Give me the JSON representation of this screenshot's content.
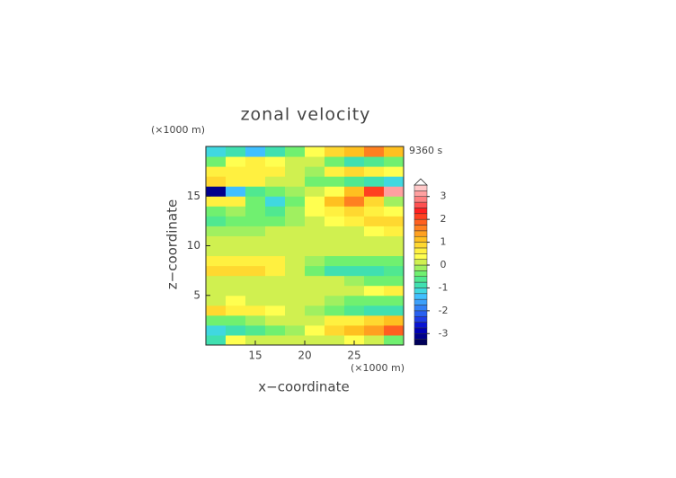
{
  "chart_data": {
    "type": "contour",
    "title": "zonal velocity",
    "x_label": "x−coordinate",
    "y_label": "z−coordinate",
    "x_unit": "(×1000 m)",
    "y_unit": "(×1000 m)",
    "time_label": "9360 s",
    "x": [
      11,
      13,
      15,
      17,
      19,
      21,
      23,
      25,
      27,
      29
    ],
    "z": [
      0.5,
      1.5,
      2.5,
      3.5,
      4.5,
      5.5,
      6.5,
      7.5,
      8.5,
      9.5,
      10.5,
      11.5,
      12.5,
      13.5,
      14.5,
      15.5,
      16.5,
      17.5,
      18.5,
      19.5
    ],
    "field": [
      [
        -1,
        0.3,
        0.2,
        0.1,
        0,
        0.1,
        0.2,
        0.3,
        0.2,
        -0.5
      ],
      [
        -1.2,
        -0.8,
        -0.6,
        -0.3,
        -0.1,
        0.3,
        0.8,
        1,
        1.3,
        1.8
      ],
      [
        -0.5,
        -0.3,
        -0.2,
        0,
        0,
        0.2,
        0.5,
        0.6,
        0.8,
        1
      ],
      [
        0.8,
        0.6,
        0.5,
        0.3,
        0.1,
        -0.2,
        -0.5,
        -0.6,
        -0.8,
        -1
      ],
      [
        0.2,
        0.3,
        0.2,
        0.1,
        0,
        0,
        -0.2,
        -0.3,
        -0.3,
        -0.5
      ],
      [
        0,
        0,
        0.1,
        0,
        0,
        0,
        0.1,
        0.2,
        0.3,
        0.6
      ],
      [
        0.1,
        0.1,
        0,
        0,
        0,
        0,
        0,
        -0.2,
        -0.4,
        -0.3
      ],
      [
        0.8,
        0.9,
        0.9,
        0.7,
        0.2,
        -0.3,
        -0.8,
        -1,
        -1,
        -0.6
      ],
      [
        0.5,
        0.7,
        0.6,
        0.5,
        0.2,
        -0.2,
        -0.4,
        -0.5,
        -0.5,
        -0.3
      ],
      [
        0.2,
        0.2,
        0.2,
        0.1,
        0,
        0,
        0,
        0.1,
        0.1,
        0
      ],
      [
        0.1,
        0.1,
        0.1,
        0,
        0,
        0,
        0.1,
        0.1,
        0.1,
        0.1
      ],
      [
        -0.2,
        -0.1,
        -0.1,
        0,
        0,
        0,
        0,
        0.2,
        0.4,
        0.5
      ],
      [
        -0.6,
        -0.5,
        -0.4,
        -0.3,
        -0.1,
        0,
        0.3,
        0.6,
        0.8,
        0.9
      ],
      [
        -0.3,
        -0.2,
        -0.5,
        -0.6,
        -0.2,
        0.3,
        0.7,
        0.9,
        0.6,
        0.3
      ],
      [
        0.6,
        0.5,
        -0.3,
        -1.2,
        -0.5,
        0.4,
        1.2,
        1.5,
        0.8,
        -0.2
      ],
      [
        -3.2,
        -1.5,
        -0.6,
        -0.3,
        -0.1,
        0,
        0.4,
        1,
        2,
        3.2
      ],
      [
        0.8,
        0.7,
        0.5,
        0.2,
        0,
        -0.3,
        -0.5,
        -0.7,
        -0.9,
        -1.2
      ],
      [
        0.5,
        0.6,
        0.7,
        0.5,
        0.2,
        -0.1,
        0.6,
        0.8,
        0.5,
        0.3
      ],
      [
        -0.3,
        0.3,
        0.5,
        0.4,
        0.2,
        0.1,
        -0.4,
        -0.9,
        -0.6,
        -0.4
      ],
      [
        -1.2,
        -0.8,
        -1.5,
        -0.8,
        -0.3,
        0.3,
        0.8,
        1.2,
        1.5,
        1.2
      ]
    ],
    "xlim": [
      10,
      30
    ],
    "ylim": [
      0,
      20
    ],
    "xticks": [
      15,
      20,
      25
    ],
    "yticks": [
      5,
      10,
      15
    ],
    "colorbar": {
      "levels": [
        -3.5,
        -3.25,
        -3,
        -2.75,
        -2.5,
        -2.25,
        -2,
        -1.75,
        -1.5,
        -1.25,
        -1,
        -0.75,
        -0.5,
        -0.25,
        0,
        0.25,
        0.5,
        0.75,
        1,
        1.25,
        1.5,
        1.75,
        2,
        2.25,
        2.5,
        2.75,
        3,
        3.25,
        3.5
      ],
      "colors": [
        "#00005a",
        "#00008c",
        "#0000b4",
        "#0a14d2",
        "#1e3ce6",
        "#2860f0",
        "#3280f5",
        "#3ca0fa",
        "#40c0ff",
        "#40d8e0",
        "#40e0b0",
        "#50e890",
        "#70f070",
        "#a0f060",
        "#d0f050",
        "#ffff50",
        "#fff040",
        "#ffd830",
        "#ffc020",
        "#ffa020",
        "#ff8020",
        "#ff6020",
        "#ff4020",
        "#ff2020",
        "#ff5050",
        "#ff8080",
        "#ffa0a0",
        "#ffc8c8"
      ],
      "over_color": "#ffffff",
      "ticks": [
        -3,
        -2,
        -1,
        0,
        1,
        2,
        3
      ]
    }
  }
}
